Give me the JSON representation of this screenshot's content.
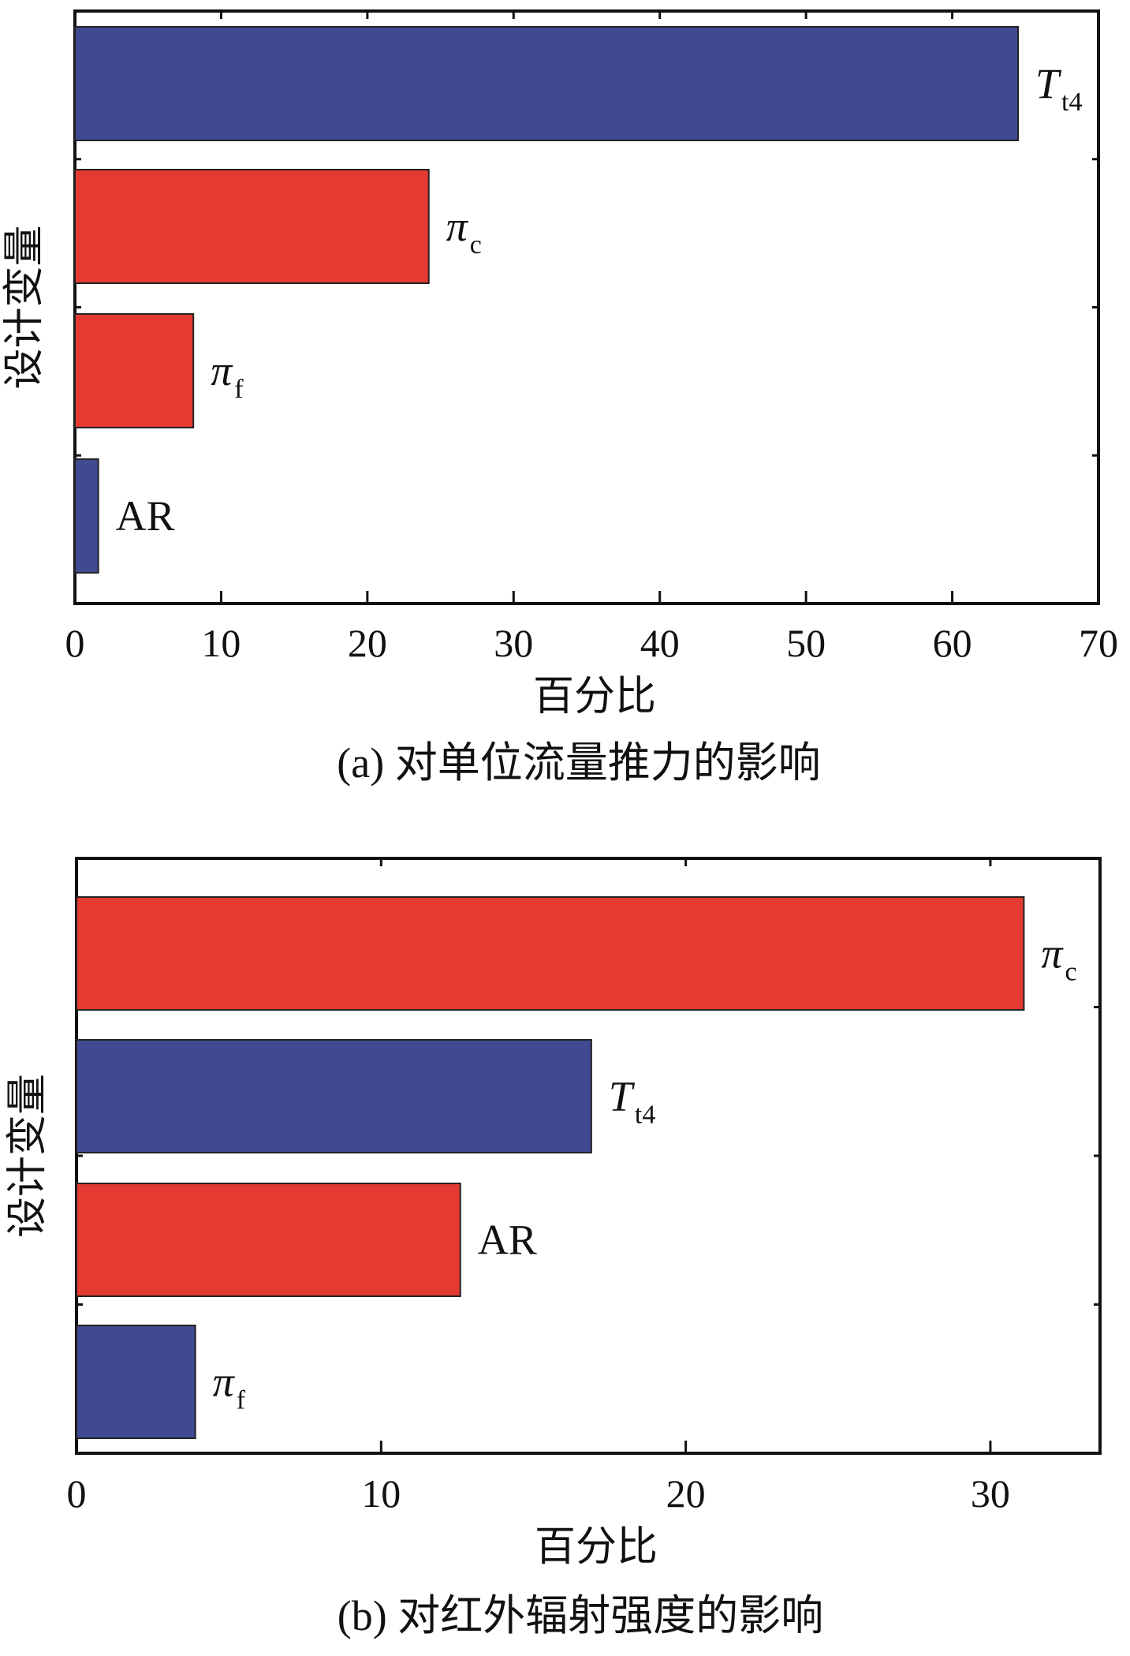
{
  "chart_data": [
    {
      "type": "bar",
      "orientation": "horizontal",
      "caption": "(a) 对单位流量推力的影响",
      "xlabel": "百分比",
      "ylabel": "设计变量",
      "xlim": [
        0,
        70
      ],
      "xticks": [
        0,
        10,
        20,
        30,
        40,
        50,
        60,
        70
      ],
      "grid": false,
      "bars": [
        {
          "label": "T_t4",
          "symbol": "T",
          "subscript": "t4",
          "italic": true,
          "value": 64.5,
          "color": "#3f4a92"
        },
        {
          "label": "π_c",
          "symbol": "π",
          "subscript": "c",
          "italic": true,
          "value": 24.2,
          "color": "#e43a31"
        },
        {
          "label": "π_f",
          "symbol": "π",
          "subscript": "f",
          "italic": true,
          "value": 8.1,
          "color": "#e43a31"
        },
        {
          "label": "AR",
          "symbol": "AR",
          "subscript": "",
          "italic": false,
          "value": 1.6,
          "color": "#3f4a92"
        }
      ]
    },
    {
      "type": "bar",
      "orientation": "horizontal",
      "caption": "(b) 对红外辐射强度的影响",
      "xlabel": "百分比",
      "ylabel": "设计变量",
      "xlim": [
        0,
        33.6
      ],
      "xticks": [
        0,
        10,
        20,
        30
      ],
      "grid": false,
      "bars": [
        {
          "label": "π_c",
          "symbol": "π",
          "subscript": "c",
          "italic": true,
          "value": 31.1,
          "color": "#e43a31"
        },
        {
          "label": "T_t4",
          "symbol": "T",
          "subscript": "t4",
          "italic": true,
          "value": 16.9,
          "color": "#3f4a92"
        },
        {
          "label": "AR",
          "symbol": "AR",
          "subscript": "",
          "italic": false,
          "value": 12.6,
          "color": "#e43a31"
        },
        {
          "label": "π_f",
          "symbol": "π",
          "subscript": "f",
          "italic": true,
          "value": 3.9,
          "color": "#3f4a92"
        }
      ]
    }
  ]
}
